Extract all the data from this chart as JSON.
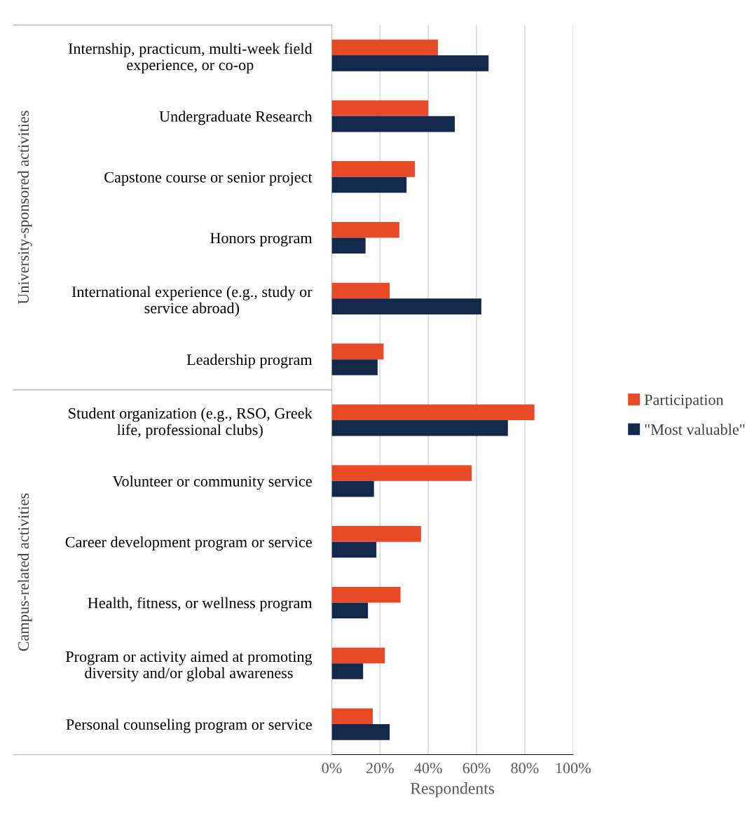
{
  "chart_data": {
    "type": "bar",
    "orientation": "horizontal",
    "xlabel": "Respondents",
    "categories": [
      "Internship, practicum, multi-week field\nexperience, or co-op",
      "Undergraduate Research",
      "Capstone course or senior project",
      "Honors program",
      "International experience (e.g., study or\nservice abroad)",
      "Leadership program",
      "Student organization (e.g., RSO, Greek\nlife, professional clubs)",
      "Volunteer or community service",
      "Career development program or service",
      "Health, fitness, or wellness program",
      "Program or activity aimed at promoting\ndiversity and/or global awareness",
      "Personal counseling program or service"
    ],
    "series": [
      {
        "name": "Participation",
        "color": "#e84a27",
        "values": [
          44,
          40,
          34.5,
          28,
          24,
          21.5,
          84,
          58,
          37,
          28.5,
          22,
          17
        ]
      },
      {
        "name": "\"Most valuable\"",
        "color": "#13294b",
        "values": [
          65,
          51,
          31,
          14,
          62,
          19,
          73,
          17.5,
          18.5,
          15,
          13,
          24
        ]
      }
    ],
    "xlim": [
      0,
      100
    ],
    "xticks": [
      {
        "value": 0,
        "label": "0%"
      },
      {
        "value": 20,
        "label": "20%"
      },
      {
        "value": 40,
        "label": "40%"
      },
      {
        "value": 60,
        "label": "60%"
      },
      {
        "value": 80,
        "label": "80%"
      },
      {
        "value": 100,
        "label": "100%"
      }
    ],
    "grid": "x",
    "legend": "right",
    "annotations": [
      "University-sponsored activities",
      "Campus-related activities"
    ]
  }
}
